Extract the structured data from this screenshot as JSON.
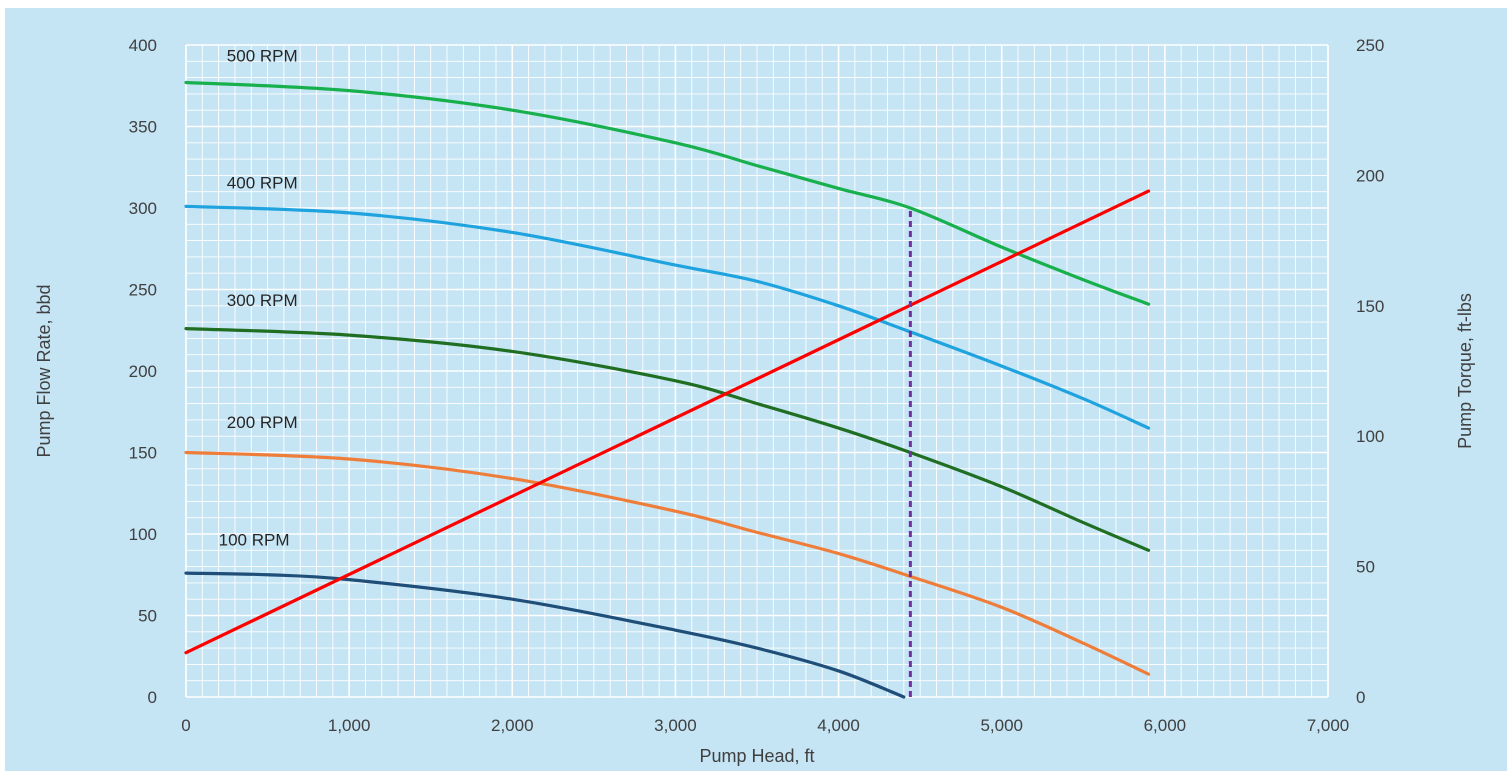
{
  "chart_data": {
    "type": "line",
    "xlabel": "Pump Head, ft",
    "ylabel": "Pump Flow Rate, bbd",
    "y2label": "Pump Torque, ft-lbs",
    "xlim": [
      0,
      7000
    ],
    "ylim": [
      0,
      400
    ],
    "y2lim": [
      0,
      250
    ],
    "x_ticks": [
      0,
      1000,
      2000,
      3000,
      4000,
      5000,
      6000,
      7000
    ],
    "x_tick_labels": [
      "0",
      "1,000",
      "2,000",
      "3,000",
      "4,000",
      "5,000",
      "6,000",
      "7,000"
    ],
    "y_ticks": [
      0,
      50,
      100,
      150,
      200,
      250,
      300,
      350,
      400
    ],
    "y_tick_labels": [
      "0",
      "50",
      "100",
      "150",
      "200",
      "250",
      "300",
      "350",
      "400"
    ],
    "y2_ticks": [
      0,
      50,
      100,
      150,
      200,
      250
    ],
    "y2_tick_labels": [
      "0",
      "50",
      "100",
      "150",
      "200",
      "250"
    ],
    "grid": true,
    "series": [
      {
        "name": "500 RPM",
        "axis": "left",
        "color": "#17b04c",
        "x": [
          0,
          1000,
          2000,
          3000,
          3500,
          4000,
          4440,
          5000,
          5500,
          5900
        ],
        "y": [
          377,
          372,
          360,
          340,
          326,
          312,
          300,
          276,
          256,
          241
        ],
        "label_at": [
          250,
          390
        ]
      },
      {
        "name": "400 RPM",
        "axis": "left",
        "color": "#1fa3de",
        "x": [
          0,
          1000,
          2000,
          3000,
          3500,
          4000,
          4440,
          5000,
          5500,
          5900
        ],
        "y": [
          301,
          297,
          285,
          265,
          255,
          240,
          224,
          203,
          183,
          165
        ],
        "label_at": [
          250,
          312
        ]
      },
      {
        "name": "300 RPM",
        "axis": "left",
        "color": "#1f6e22",
        "x": [
          0,
          1000,
          2000,
          3000,
          3500,
          4000,
          4440,
          5000,
          5500,
          5900
        ],
        "y": [
          226,
          222,
          212,
          194,
          180,
          165,
          150,
          129,
          107,
          90
        ],
        "label_at": [
          250,
          240
        ]
      },
      {
        "name": "200 RPM",
        "axis": "left",
        "color": "#ef7d3a",
        "x": [
          0,
          1000,
          2000,
          3000,
          3500,
          4000,
          4440,
          5000,
          5500,
          5900
        ],
        "y": [
          150,
          146,
          134,
          114,
          101,
          88,
          74,
          55,
          33,
          14
        ],
        "label_at": [
          250,
          165
        ]
      },
      {
        "name": "100 RPM",
        "axis": "left",
        "color": "#1f4e79",
        "x": [
          0,
          500,
          1000,
          2000,
          3000,
          3500,
          4000,
          4400
        ],
        "y": [
          76,
          75,
          72,
          60,
          41,
          30,
          16,
          0
        ],
        "label_at": [
          200,
          93
        ]
      },
      {
        "name": "",
        "axis": "right",
        "color": "#ff0000",
        "x": [
          0,
          5900
        ],
        "y": [
          17,
          194
        ]
      }
    ],
    "annotations": [
      {
        "type": "vertical-dashed-line",
        "color": "#7030a0",
        "x": 4440,
        "y_from": 0,
        "y_to": 300
      }
    ],
    "colors": {
      "plot_background": "#c5e4f4",
      "grid": "#ffffff"
    }
  }
}
